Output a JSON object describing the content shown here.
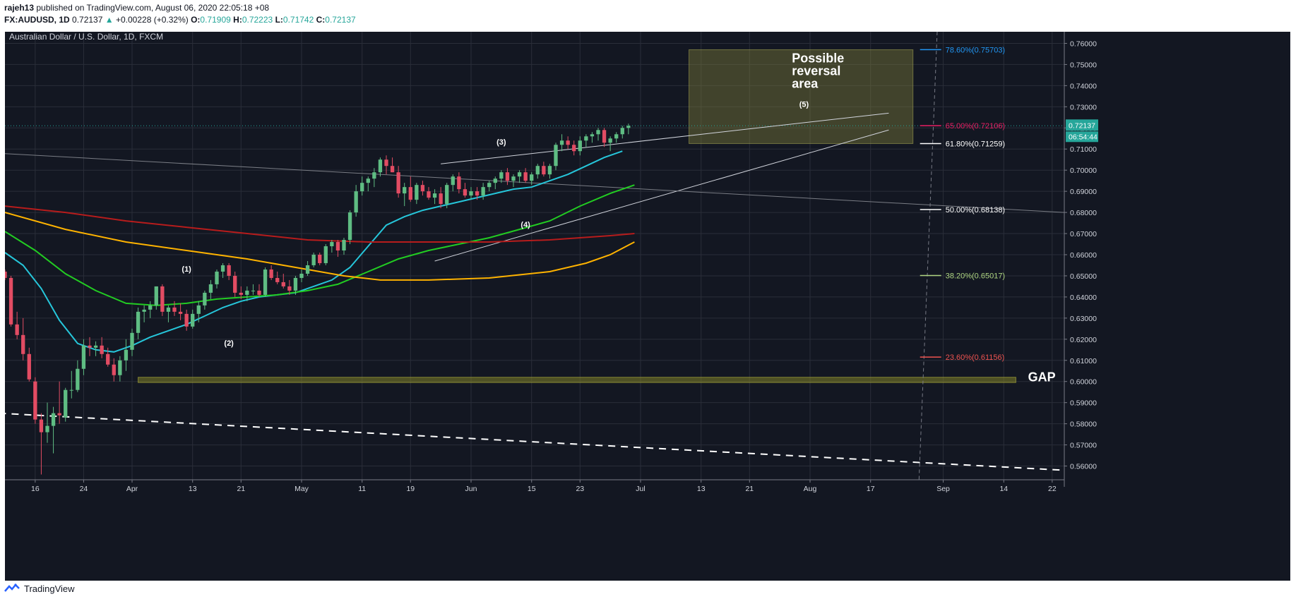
{
  "header": {
    "author": "rajeh13",
    "published": "published on TradingView.com, August 06, 2020 22:05:18 +08",
    "symbol": "FX:AUDUSD, 1D",
    "last": "0.72137",
    "change": "+0.00228 (+0.32%)",
    "o_label": "O:",
    "o_value": "0.71909",
    "h_label": "H:",
    "h_value": "0.72223",
    "l_label": "L:",
    "l_value": "0.71742",
    "c_label": "C:",
    "c_value": "0.72137"
  },
  "footer": {
    "brand": "TradingView"
  },
  "colors": {
    "background": "#131722",
    "grid": "#2a2e39",
    "up": "#26a69a",
    "down": "#ef5350",
    "candle_up": "#5fbd83",
    "candle_down": "#e24c63",
    "ema_fast": "#26c6da",
    "sma50": "#22cc22",
    "sma200_red": "#b71c1c",
    "sma_yellow": "#ffb300"
  },
  "chart_data": {
    "type": "candlestick",
    "title": "Australian Dollar / U.S. Dollar, 1D, FXCM",
    "ylim": [
      0.5535,
      0.7655
    ],
    "y_ticks": [
      "0.76000",
      "0.75000",
      "0.74000",
      "0.73000",
      "0.72000",
      "0.71000",
      "0.70000",
      "0.69000",
      "0.68000",
      "0.67000",
      "0.66000",
      "0.65000",
      "0.64000",
      "0.63000",
      "0.62000",
      "0.61000",
      "0.60000",
      "0.59000",
      "0.58000",
      "0.57000",
      "0.56000"
    ],
    "x_tick_labels": [
      "16",
      "24",
      "Apr",
      "13",
      "21",
      "May",
      "11",
      "19",
      "Jun",
      "15",
      "23",
      "Jul",
      "13",
      "21",
      "Aug",
      "17",
      "Sep",
      "14",
      "22"
    ],
    "x_tick_index": [
      5,
      13,
      21,
      31,
      39,
      49,
      59,
      67,
      77,
      87,
      95,
      105,
      115,
      123,
      133,
      143,
      155,
      165,
      173
    ],
    "x_range": [
      0,
      175
    ],
    "price_label": "0.72137",
    "countdown_label": "06:54:44",
    "candles": [
      [
        0,
        0.652,
        0.653,
        0.648,
        0.649
      ],
      [
        1,
        0.649,
        0.65,
        0.626,
        0.627
      ],
      [
        2,
        0.627,
        0.633,
        0.62,
        0.622
      ],
      [
        3,
        0.622,
        0.63,
        0.61,
        0.613
      ],
      [
        4,
        0.613,
        0.616,
        0.6,
        0.601
      ],
      [
        5,
        0.6,
        0.602,
        0.58,
        0.582
      ],
      [
        6,
        0.582,
        0.585,
        0.556,
        0.576
      ],
      [
        7,
        0.576,
        0.59,
        0.571,
        0.579
      ],
      [
        8,
        0.579,
        0.588,
        0.566,
        0.585
      ],
      [
        9,
        0.585,
        0.6,
        0.58,
        0.584
      ],
      [
        10,
        0.583,
        0.597,
        0.581,
        0.596
      ],
      [
        11,
        0.596,
        0.605,
        0.592,
        0.596
      ],
      [
        12,
        0.596,
        0.61,
        0.595,
        0.606
      ],
      [
        13,
        0.606,
        0.62,
        0.603,
        0.617
      ],
      [
        14,
        0.617,
        0.621,
        0.612,
        0.616
      ],
      [
        15,
        0.616,
        0.619,
        0.612,
        0.617
      ],
      [
        16,
        0.617,
        0.621,
        0.611,
        0.613
      ],
      [
        17,
        0.613,
        0.616,
        0.607,
        0.608
      ],
      [
        18,
        0.608,
        0.611,
        0.6,
        0.603
      ],
      [
        19,
        0.603,
        0.612,
        0.6,
        0.61
      ],
      [
        20,
        0.61,
        0.62,
        0.605,
        0.615
      ],
      [
        21,
        0.615,
        0.625,
        0.612,
        0.623
      ],
      [
        22,
        0.623,
        0.635,
        0.62,
        0.633
      ],
      [
        23,
        0.633,
        0.636,
        0.628,
        0.634
      ],
      [
        24,
        0.634,
        0.638,
        0.63,
        0.636
      ],
      [
        25,
        0.636,
        0.645,
        0.634,
        0.645
      ],
      [
        26,
        0.645,
        0.646,
        0.631,
        0.633
      ],
      [
        27,
        0.633,
        0.636,
        0.628,
        0.635
      ],
      [
        28,
        0.635,
        0.638,
        0.631,
        0.633
      ],
      [
        29,
        0.633,
        0.637,
        0.629,
        0.632
      ],
      [
        30,
        0.632,
        0.634,
        0.624,
        0.626
      ],
      [
        31,
        0.626,
        0.634,
        0.625,
        0.632
      ],
      [
        32,
        0.632,
        0.638,
        0.628,
        0.636
      ],
      [
        33,
        0.636,
        0.643,
        0.634,
        0.642
      ],
      [
        34,
        0.642,
        0.648,
        0.639,
        0.646
      ],
      [
        35,
        0.646,
        0.653,
        0.644,
        0.652
      ],
      [
        36,
        0.652,
        0.656,
        0.649,
        0.655
      ],
      [
        37,
        0.655,
        0.656,
        0.648,
        0.65
      ],
      [
        38,
        0.65,
        0.652,
        0.64,
        0.642
      ],
      [
        39,
        0.642,
        0.645,
        0.639,
        0.641
      ],
      [
        40,
        0.641,
        0.645,
        0.638,
        0.643
      ],
      [
        41,
        0.643,
        0.646,
        0.641,
        0.643
      ],
      [
        42,
        0.643,
        0.646,
        0.64,
        0.641
      ],
      [
        43,
        0.641,
        0.654,
        0.64,
        0.653
      ],
      [
        44,
        0.653,
        0.655,
        0.648,
        0.649
      ],
      [
        45,
        0.649,
        0.652,
        0.646,
        0.647
      ],
      [
        46,
        0.647,
        0.651,
        0.644,
        0.645
      ],
      [
        47,
        0.645,
        0.648,
        0.641,
        0.643
      ],
      [
        48,
        0.643,
        0.65,
        0.641,
        0.649
      ],
      [
        49,
        0.649,
        0.653,
        0.647,
        0.651
      ],
      [
        50,
        0.651,
        0.657,
        0.65,
        0.655
      ],
      [
        51,
        0.655,
        0.661,
        0.654,
        0.66
      ],
      [
        52,
        0.66,
        0.661,
        0.655,
        0.656
      ],
      [
        53,
        0.656,
        0.665,
        0.655,
        0.664
      ],
      [
        54,
        0.664,
        0.667,
        0.661,
        0.666
      ],
      [
        55,
        0.666,
        0.667,
        0.659,
        0.662
      ],
      [
        56,
        0.662,
        0.668,
        0.66,
        0.667
      ],
      [
        57,
        0.667,
        0.681,
        0.665,
        0.68
      ],
      [
        58,
        0.68,
        0.693,
        0.678,
        0.69
      ],
      [
        59,
        0.69,
        0.697,
        0.688,
        0.694
      ],
      [
        60,
        0.694,
        0.697,
        0.69,
        0.696
      ],
      [
        61,
        0.696,
        0.701,
        0.692,
        0.699
      ],
      [
        62,
        0.699,
        0.706,
        0.697,
        0.705
      ],
      [
        63,
        0.705,
        0.707,
        0.698,
        0.702
      ],
      [
        64,
        0.702,
        0.706,
        0.699,
        0.699
      ],
      [
        65,
        0.699,
        0.702,
        0.687,
        0.689
      ],
      [
        66,
        0.689,
        0.694,
        0.683,
        0.692
      ],
      [
        67,
        0.692,
        0.697,
        0.685,
        0.686
      ],
      [
        68,
        0.686,
        0.694,
        0.684,
        0.693
      ],
      [
        69,
        0.693,
        0.695,
        0.688,
        0.69
      ],
      [
        70,
        0.69,
        0.692,
        0.686,
        0.687
      ],
      [
        71,
        0.687,
        0.691,
        0.684,
        0.689
      ],
      [
        72,
        0.689,
        0.692,
        0.682,
        0.684
      ],
      [
        73,
        0.684,
        0.694,
        0.682,
        0.693
      ],
      [
        74,
        0.693,
        0.698,
        0.69,
        0.697
      ],
      [
        75,
        0.697,
        0.699,
        0.689,
        0.691
      ],
      [
        76,
        0.691,
        0.694,
        0.687,
        0.688
      ],
      [
        77,
        0.688,
        0.692,
        0.686,
        0.69
      ],
      [
        78,
        0.69,
        0.692,
        0.686,
        0.688
      ],
      [
        79,
        0.688,
        0.694,
        0.686,
        0.692
      ],
      [
        80,
        0.692,
        0.695,
        0.69,
        0.694
      ],
      [
        81,
        0.694,
        0.697,
        0.691,
        0.696
      ],
      [
        82,
        0.696,
        0.7,
        0.694,
        0.699
      ],
      [
        83,
        0.699,
        0.701,
        0.693,
        0.695
      ],
      [
        84,
        0.695,
        0.698,
        0.692,
        0.697
      ],
      [
        85,
        0.697,
        0.7,
        0.694,
        0.699
      ],
      [
        86,
        0.699,
        0.701,
        0.694,
        0.695
      ],
      [
        87,
        0.695,
        0.699,
        0.693,
        0.698
      ],
      [
        88,
        0.698,
        0.703,
        0.696,
        0.702
      ],
      [
        89,
        0.702,
        0.704,
        0.697,
        0.698
      ],
      [
        90,
        0.698,
        0.703,
        0.696,
        0.702
      ],
      [
        91,
        0.702,
        0.713,
        0.7,
        0.712
      ],
      [
        92,
        0.712,
        0.717,
        0.709,
        0.714
      ],
      [
        93,
        0.714,
        0.716,
        0.71,
        0.712
      ],
      [
        94,
        0.712,
        0.714,
        0.707,
        0.709
      ],
      [
        95,
        0.709,
        0.716,
        0.707,
        0.714
      ],
      [
        96,
        0.714,
        0.717,
        0.711,
        0.716
      ],
      [
        97,
        0.716,
        0.718,
        0.713,
        0.717
      ],
      [
        98,
        0.717,
        0.72,
        0.714,
        0.719
      ],
      [
        99,
        0.719,
        0.72,
        0.711,
        0.713
      ],
      [
        100,
        0.713,
        0.716,
        0.709,
        0.715
      ],
      [
        101,
        0.715,
        0.718,
        0.713,
        0.717
      ],
      [
        102,
        0.717,
        0.721,
        0.715,
        0.72
      ],
      [
        103,
        0.72,
        0.722,
        0.717,
        0.721
      ]
    ],
    "moving_averages": [
      {
        "color": "#26c6da",
        "points": [
          [
            0,
            0.661
          ],
          [
            3,
            0.655
          ],
          [
            6,
            0.644
          ],
          [
            9,
            0.629
          ],
          [
            12,
            0.618
          ],
          [
            15,
            0.615
          ],
          [
            18,
            0.614
          ],
          [
            21,
            0.617
          ],
          [
            24,
            0.621
          ],
          [
            27,
            0.624
          ],
          [
            30,
            0.627
          ],
          [
            33,
            0.631
          ],
          [
            36,
            0.635
          ],
          [
            39,
            0.638
          ],
          [
            42,
            0.64
          ],
          [
            45,
            0.641
          ],
          [
            48,
            0.642
          ],
          [
            51,
            0.645
          ],
          [
            54,
            0.648
          ],
          [
            57,
            0.654
          ],
          [
            60,
            0.664
          ],
          [
            63,
            0.674
          ],
          [
            66,
            0.678
          ],
          [
            69,
            0.681
          ],
          [
            72,
            0.683
          ],
          [
            75,
            0.685
          ],
          [
            78,
            0.687
          ],
          [
            81,
            0.689
          ],
          [
            84,
            0.691
          ],
          [
            87,
            0.692
          ],
          [
            90,
            0.695
          ],
          [
            93,
            0.698
          ],
          [
            96,
            0.702
          ],
          [
            99,
            0.706
          ],
          [
            102,
            0.709
          ]
        ]
      },
      {
        "color": "#22cc22",
        "points": [
          [
            0,
            0.671
          ],
          [
            5,
            0.662
          ],
          [
            10,
            0.651
          ],
          [
            15,
            0.643
          ],
          [
            20,
            0.637
          ],
          [
            25,
            0.636
          ],
          [
            30,
            0.637
          ],
          [
            35,
            0.639
          ],
          [
            40,
            0.64
          ],
          [
            45,
            0.641
          ],
          [
            50,
            0.643
          ],
          [
            55,
            0.646
          ],
          [
            60,
            0.652
          ],
          [
            65,
            0.658
          ],
          [
            70,
            0.662
          ],
          [
            75,
            0.665
          ],
          [
            80,
            0.668
          ],
          [
            85,
            0.672
          ],
          [
            90,
            0.676
          ],
          [
            95,
            0.683
          ],
          [
            100,
            0.689
          ],
          [
            104,
            0.693
          ]
        ]
      },
      {
        "color": "#b71c1c",
        "points": [
          [
            0,
            0.683
          ],
          [
            10,
            0.68
          ],
          [
            20,
            0.676
          ],
          [
            30,
            0.673
          ],
          [
            40,
            0.67
          ],
          [
            50,
            0.667
          ],
          [
            60,
            0.666
          ],
          [
            70,
            0.666
          ],
          [
            80,
            0.666
          ],
          [
            90,
            0.667
          ],
          [
            100,
            0.669
          ],
          [
            104,
            0.67
          ]
        ]
      },
      {
        "color": "#ffb300",
        "points": [
          [
            0,
            0.68
          ],
          [
            10,
            0.672
          ],
          [
            20,
            0.666
          ],
          [
            30,
            0.662
          ],
          [
            40,
            0.658
          ],
          [
            50,
            0.653
          ],
          [
            56,
            0.65
          ],
          [
            62,
            0.648
          ],
          [
            70,
            0.648
          ],
          [
            80,
            0.649
          ],
          [
            90,
            0.652
          ],
          [
            96,
            0.656
          ],
          [
            100,
            0.66
          ],
          [
            104,
            0.666
          ]
        ]
      }
    ],
    "trendlines": [
      {
        "color": "#d1d4dc",
        "width": 1,
        "dash": "",
        "from": [
          72,
          0.703
        ],
        "to": [
          146,
          0.727
        ]
      },
      {
        "color": "#d1d4dc",
        "width": 1,
        "dash": "",
        "from": [
          71,
          0.657
        ],
        "to": [
          146,
          0.719
        ]
      },
      {
        "color": "#7a7d85",
        "width": 1,
        "dash": "",
        "from": [
          -1,
          0.708
        ],
        "to": [
          175,
          0.68
        ]
      },
      {
        "color": "#ffffff",
        "width": 2,
        "dash": "10,8",
        "from": [
          -1,
          0.585
        ],
        "to": [
          175,
          0.558
        ]
      }
    ],
    "wave_labels": [
      {
        "text": "(1)",
        "x": 30,
        "y": 0.652
      },
      {
        "text": "(2)",
        "x": 37,
        "y": 0.617
      },
      {
        "text": "(3)",
        "x": 82,
        "y": 0.712
      },
      {
        "text": "(4)",
        "x": 86,
        "y": 0.673
      },
      {
        "text": "(5)",
        "x": 132,
        "y": 0.73
      }
    ],
    "fib_levels": [
      {
        "label": "78.60%(0.75703)",
        "value": 0.75703,
        "color": "#2196f3"
      },
      {
        "label": "65.00%(0.72106)",
        "value": 0.72106,
        "color": "#e91e63"
      },
      {
        "label": "61.80%(0.71259)",
        "value": 0.71259,
        "color": "#ffffff"
      },
      {
        "label": "50.00%(0.68138)",
        "value": 0.68138,
        "color": "#ffffff"
      },
      {
        "label": "38.20%(0.65017)",
        "value": 0.65017,
        "color": "#aed581"
      },
      {
        "label": "23.60%(0.61156)",
        "value": 0.61156,
        "color": "#ef5350"
      }
    ],
    "zones": [
      {
        "name": "reversal-zone",
        "x0": 113,
        "x1": 150,
        "y0": 0.7126,
        "y1": 0.757,
        "fill": "rgba(128,128,60,0.42)",
        "stroke": "rgba(160,160,80,0.6)"
      },
      {
        "name": "gap-zone",
        "x0": 22,
        "x1": 167,
        "y0": 0.5995,
        "y1": 0.602,
        "fill": "rgba(128,128,40,0.55)",
        "stroke": "rgba(180,180,60,0.6)"
      }
    ],
    "annotations": [
      {
        "lines": [
          "Possible",
          "reversal",
          "area"
        ],
        "x": 130,
        "y": 0.751
      },
      {
        "lines": [
          "GAP"
        ],
        "x": 169,
        "y": 0.6
      }
    ]
  }
}
